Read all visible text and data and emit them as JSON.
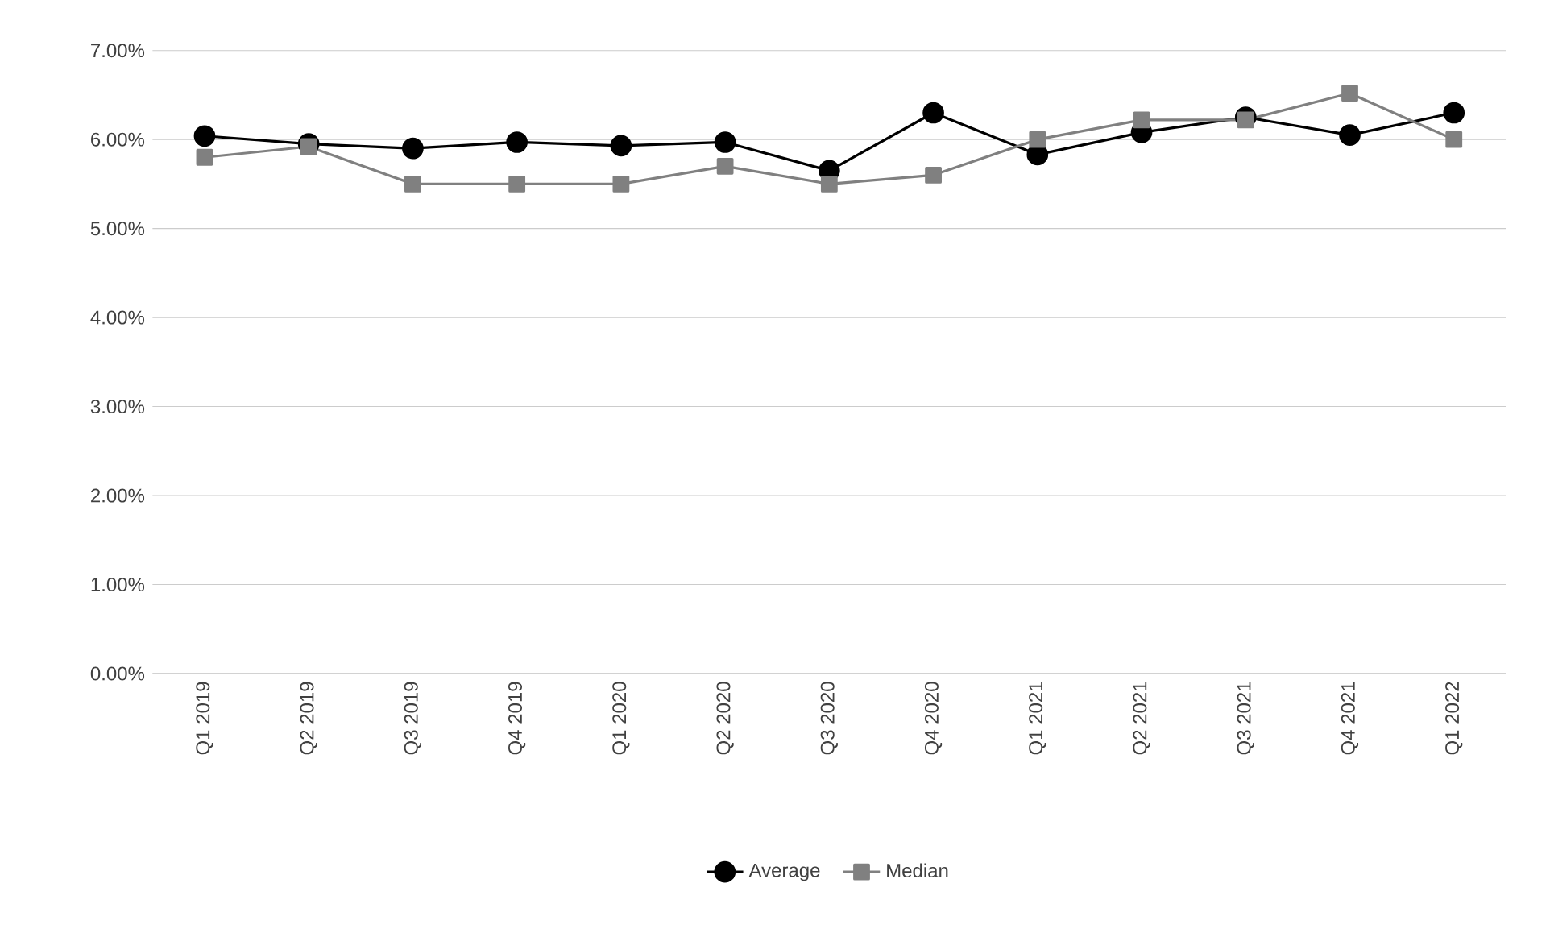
{
  "chart_data": {
    "type": "line",
    "categories": [
      "Q1 2019",
      "Q2 2019",
      "Q3 2019",
      "Q4 2019",
      "Q1 2020",
      "Q2 2020",
      "Q3 2020",
      "Q4 2020",
      "Q1 2021",
      "Q2 2021",
      "Q3 2021",
      "Q4 2021",
      "Q1 2022"
    ],
    "series": [
      {
        "name": "Average",
        "color": "#000000",
        "marker": "circle",
        "values": [
          6.04,
          5.95,
          5.9,
          5.97,
          5.93,
          5.97,
          5.65,
          6.3,
          5.83,
          6.08,
          6.25,
          6.05,
          6.3
        ]
      },
      {
        "name": "Median",
        "color": "#808080",
        "marker": "square",
        "values": [
          5.8,
          5.92,
          5.5,
          5.5,
          5.5,
          5.7,
          5.5,
          5.6,
          6.0,
          6.22,
          6.22,
          6.52,
          6.0
        ]
      }
    ],
    "ylim": [
      0,
      7
    ],
    "yticks": [
      {
        "value": 0,
        "label": "0.00%"
      },
      {
        "value": 1,
        "label": "1.00%"
      },
      {
        "value": 2,
        "label": "2.00%"
      },
      {
        "value": 3,
        "label": "3.00%"
      },
      {
        "value": 4,
        "label": "4.00%"
      },
      {
        "value": 5,
        "label": "5.00%"
      },
      {
        "value": 6,
        "label": "6.00%"
      },
      {
        "value": 7,
        "label": "7.00%"
      }
    ],
    "grid": "y",
    "legend": "bottom",
    "line_style": "solid"
  }
}
